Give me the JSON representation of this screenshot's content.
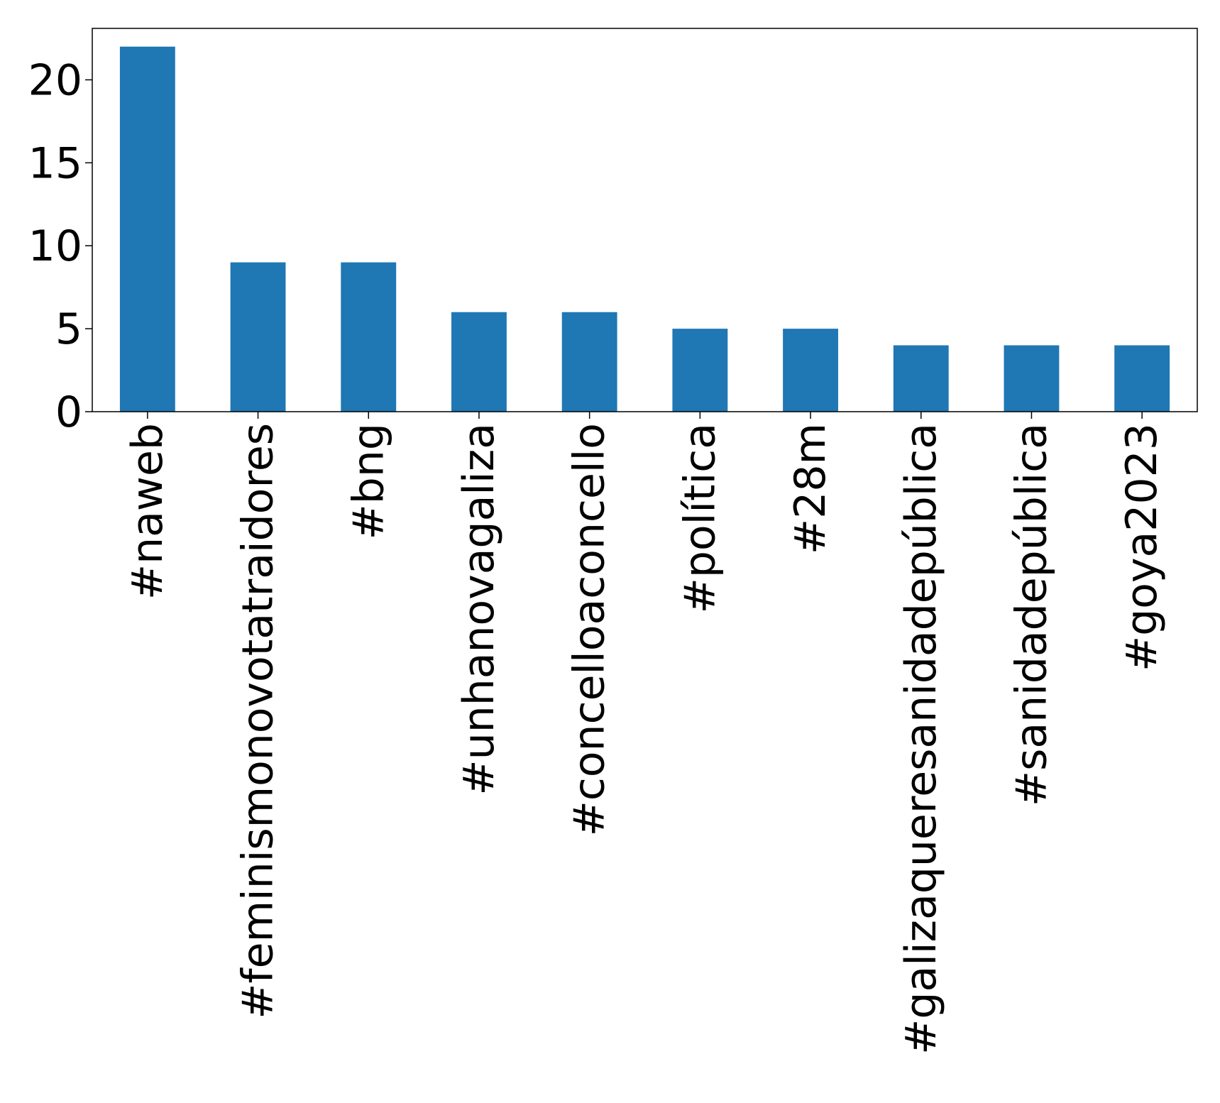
{
  "chart_data": {
    "type": "bar",
    "categories": [
      "#naweb",
      "#feminismonovotatraidores",
      "#bng",
      "#unhanovagaliza",
      "#concelloaconcello",
      "#política",
      "#28m",
      "#galizaqueresanidadepública",
      "#sanidadepública",
      "#goya2023"
    ],
    "values": [
      22,
      9,
      9,
      6,
      6,
      5,
      5,
      4,
      4,
      4
    ],
    "title": "",
    "xlabel": "",
    "ylabel": "",
    "ylim": [
      0,
      23.1
    ],
    "yticks": [
      0,
      5,
      10,
      15,
      20
    ],
    "grid": false,
    "bar_color": "#1f77b4"
  }
}
